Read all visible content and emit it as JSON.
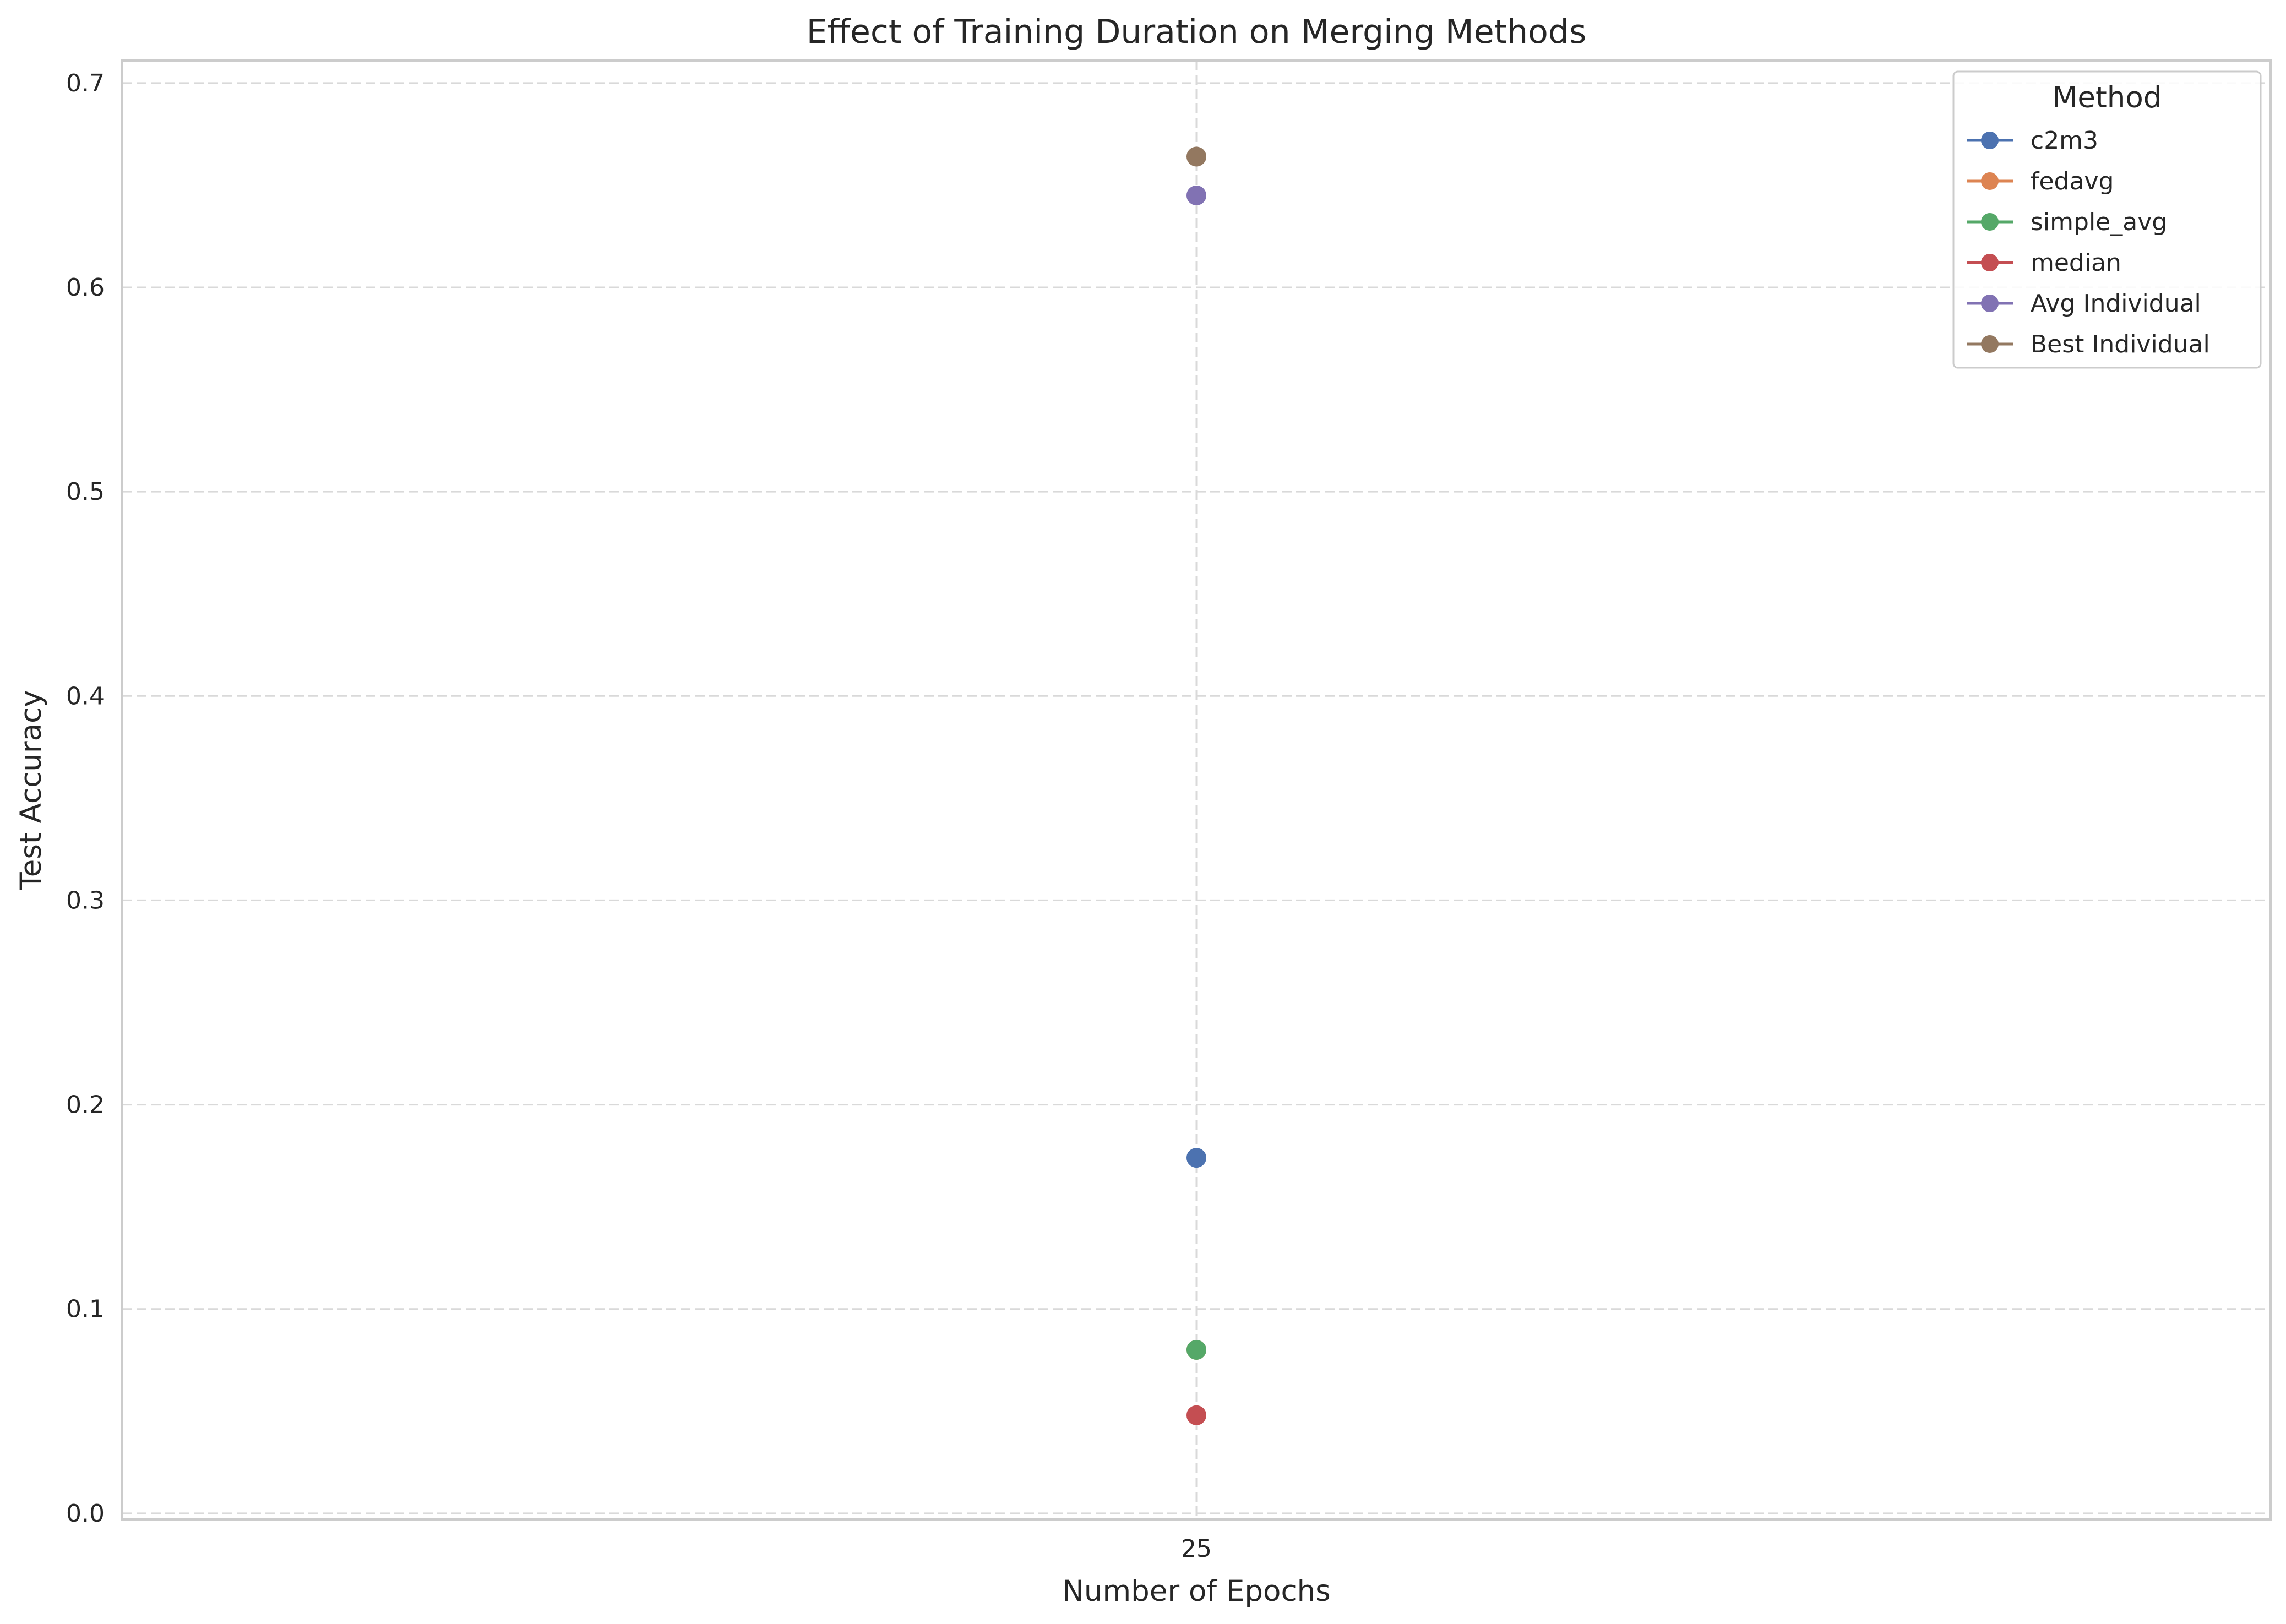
{
  "chart_data": {
    "type": "line",
    "title": "Effect of Training Duration on Merging Methods",
    "xlabel": "Number of Epochs",
    "ylabel": "Test Accuracy",
    "x": [
      25
    ],
    "xticks": [
      "25"
    ],
    "yticks": [
      "0.0",
      "0.1",
      "0.2",
      "0.3",
      "0.4",
      "0.5",
      "0.6",
      "0.7"
    ],
    "ylim": [
      -0.003,
      0.711
    ],
    "grid": true,
    "legend": {
      "title": "Method",
      "placement": "top-right"
    },
    "series": [
      {
        "name": "c2m3",
        "values": [
          0.174
        ],
        "color": "#4c72b0"
      },
      {
        "name": "fedavg",
        "values": [
          0.08
        ],
        "color": "#dd8452"
      },
      {
        "name": "simple_avg",
        "values": [
          0.08
        ],
        "color": "#55a868"
      },
      {
        "name": "median",
        "values": [
          0.048
        ],
        "color": "#c44e52"
      },
      {
        "name": "Avg Individual",
        "values": [
          0.645
        ],
        "color": "#8172b3"
      },
      {
        "name": "Best Individual",
        "values": [
          0.664
        ],
        "color": "#937860"
      }
    ]
  }
}
